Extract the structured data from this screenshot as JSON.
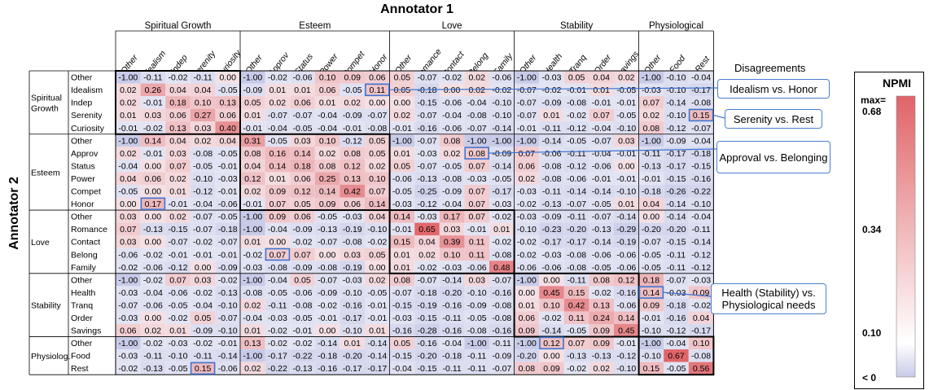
{
  "chart_data": {
    "type": "heatmap",
    "title": "Annotator 1",
    "xlabel": "Annotator 1",
    "ylabel": "Annotator 2",
    "groups": [
      {
        "name": "Spiritual Growth",
        "row_label": "Spiritual Growth",
        "labels": [
          "Other",
          "Idealism",
          "Indep",
          "Serenity",
          "Curiosity"
        ]
      },
      {
        "name": "Esteem",
        "row_label": "Esteem",
        "labels": [
          "Other",
          "Approv",
          "Status",
          "Power",
          "Compet",
          "Honor"
        ]
      },
      {
        "name": "Love",
        "row_label": "Love",
        "labels": [
          "Other",
          "Romance",
          "Contact",
          "Belong",
          "Family"
        ]
      },
      {
        "name": "Stability",
        "row_label": "Stability",
        "labels": [
          "Other",
          "Health",
          "Tranq",
          "Order",
          "Savings"
        ]
      },
      {
        "name": "Physiological",
        "row_label": "Physiolog.",
        "labels": [
          "Other",
          "Food",
          "Rest"
        ]
      }
    ],
    "matrix": [
      [
        -1.0,
        -0.11,
        -0.02,
        -0.11,
        0.0,
        -1.0,
        -0.02,
        -0.06,
        0.1,
        0.09,
        0.06,
        0.05,
        -0.07,
        -0.02,
        0.02,
        -0.06,
        -1.0,
        -0.03,
        0.05,
        0.04,
        0.02,
        -1.0,
        -0.1,
        -0.04
      ],
      [
        0.02,
        0.26,
        0.04,
        0.04,
        -0.05,
        -0.09,
        0.01,
        0.01,
        0.06,
        -0.05,
        0.11,
        0.05,
        -0.18,
        0.0,
        0.02,
        -0.02,
        -0.07,
        -0.02,
        -0.01,
        0.01,
        -0.05,
        -0.03,
        -0.1,
        -0.17
      ],
      [
        0.02,
        -0.01,
        0.18,
        0.1,
        0.13,
        0.05,
        0.02,
        0.06,
        0.01,
        0.02,
        0.0,
        0.0,
        -0.15,
        -0.06,
        -0.04,
        -0.1,
        -0.07,
        -0.09,
        -0.08,
        -0.01,
        -0.01,
        0.07,
        -0.14,
        -0.08
      ],
      [
        0.01,
        0.03,
        0.06,
        0.27,
        0.06,
        0.01,
        -0.07,
        -0.07,
        -0.04,
        -0.09,
        -0.07,
        0.02,
        -0.07,
        -0.04,
        -0.08,
        -0.1,
        -0.07,
        0.01,
        -0.02,
        0.07,
        -0.05,
        0.02,
        -0.1,
        0.15
      ],
      [
        -0.01,
        -0.02,
        0.13,
        0.03,
        0.4,
        -0.01,
        -0.04,
        -0.05,
        -0.04,
        -0.01,
        -0.08,
        -0.01,
        -0.16,
        -0.06,
        -0.07,
        -0.14,
        -0.01,
        -0.11,
        -0.12,
        -0.04,
        -0.1,
        0.08,
        -0.12,
        -0.07
      ],
      [
        -1.0,
        0.14,
        0.04,
        0.02,
        0.04,
        0.31,
        -0.05,
        0.03,
        0.1,
        -0.12,
        0.05,
        -1.0,
        -0.07,
        0.08,
        -1.0,
        -1.0,
        -1.0,
        -0.14,
        -0.05,
        -0.07,
        0.03,
        -1.0,
        -0.09,
        -0.04
      ],
      [
        0.02,
        -0.01,
        0.03,
        -0.08,
        -0.05,
        0.08,
        0.16,
        0.14,
        0.02,
        0.08,
        0.05,
        0.01,
        -0.03,
        0.02,
        0.08,
        -0.09,
        0.07,
        -0.06,
        -0.11,
        -0.04,
        -0.01,
        -0.11,
        -0.17,
        -0.18
      ],
      [
        -0.04,
        0.0,
        0.07,
        -0.05,
        -0.01,
        0.04,
        0.14,
        0.18,
        0.08,
        0.12,
        0.02,
        0.05,
        -0.07,
        -0.05,
        0.07,
        -0.14,
        0.06,
        -0.08,
        -0.12,
        -0.06,
        0.0,
        -0.13,
        -0.17,
        -0.15
      ],
      [
        0.04,
        0.06,
        0.02,
        -0.1,
        -0.03,
        0.12,
        0.01,
        0.06,
        0.25,
        0.13,
        0.1,
        -0.06,
        -0.13,
        -0.08,
        -0.03,
        -0.05,
        0.02,
        -0.08,
        -0.06,
        -0.01,
        -0.01,
        -0.01,
        -0.15,
        -0.16
      ],
      [
        -0.05,
        0.0,
        0.01,
        -0.12,
        -0.01,
        0.02,
        0.09,
        0.12,
        0.14,
        0.42,
        0.07,
        -0.05,
        -0.25,
        -0.09,
        0.07,
        -0.17,
        -0.03,
        -0.11,
        -0.14,
        -0.14,
        -0.1,
        -0.18,
        -0.26,
        -0.22
      ],
      [
        0.0,
        0.17,
        -0.01,
        -0.04,
        -0.06,
        -0.01,
        0.07,
        0.05,
        0.09,
        0.06,
        0.14,
        -0.03,
        -0.12,
        -0.04,
        0.07,
        -0.03,
        -0.02,
        -0.13,
        -0.07,
        -0.05,
        0.01,
        0.04,
        -0.14,
        -0.1
      ],
      [
        0.03,
        0.0,
        0.02,
        -0.07,
        -0.05,
        -1.0,
        0.09,
        0.06,
        -0.05,
        -0.03,
        0.04,
        0.14,
        -0.03,
        0.17,
        0.07,
        -0.02,
        -0.03,
        -0.09,
        -0.11,
        -0.07,
        -0.14,
        0.0,
        -0.14,
        -0.04
      ],
      [
        0.07,
        -0.13,
        -0.15,
        -0.07,
        -0.18,
        -1.0,
        -0.04,
        -0.09,
        -0.13,
        -0.19,
        -0.1,
        -0.01,
        0.65,
        0.03,
        -0.01,
        0.01,
        -0.1,
        -0.23,
        -0.2,
        -0.13,
        -0.29,
        -0.2,
        -0.2,
        -0.11
      ],
      [
        0.03,
        0.0,
        -0.07,
        -0.02,
        -0.07,
        0.01,
        0.0,
        -0.02,
        -0.07,
        -0.08,
        -0.02,
        0.15,
        0.04,
        0.39,
        0.11,
        -0.02,
        -0.02,
        -0.17,
        -0.17,
        -0.14,
        -0.19,
        -0.07,
        -0.15,
        -0.14
      ],
      [
        -0.06,
        -0.02,
        -0.01,
        -0.01,
        -0.01,
        -0.02,
        0.07,
        0.07,
        0.0,
        0.03,
        0.05,
        0.01,
        0.02,
        0.1,
        0.11,
        -0.08,
        -0.02,
        -0.03,
        -0.08,
        -0.06,
        -0.06,
        -0.05,
        -0.11,
        -0.12
      ],
      [
        -0.02,
        -0.06,
        -0.12,
        0.0,
        -0.09,
        -0.03,
        -0.08,
        -0.09,
        -0.08,
        -0.19,
        0.0,
        0.01,
        -0.02,
        -0.03,
        -0.06,
        0.48,
        -0.06,
        -0.06,
        -0.08,
        -0.05,
        -0.06,
        -0.05,
        -0.11,
        -0.12
      ],
      [
        -1.0,
        -0.02,
        0.07,
        0.03,
        -0.02,
        -1.0,
        -0.04,
        0.05,
        -0.07,
        -0.03,
        0.02,
        0.08,
        -0.07,
        -0.14,
        0.03,
        -0.07,
        -1.0,
        0.0,
        -0.11,
        0.08,
        0.12,
        0.18,
        -0.07,
        -0.03
      ],
      [
        -0.03,
        -0.04,
        -0.06,
        -0.02,
        -0.13,
        -0.08,
        -0.05,
        -0.06,
        -0.09,
        -0.1,
        -0.05,
        -0.07,
        -0.18,
        -0.2,
        -0.1,
        -0.16,
        0.0,
        0.45,
        0.15,
        -0.02,
        -0.16,
        0.14,
        -0.03,
        0.09
      ],
      [
        -0.07,
        -0.06,
        -0.05,
        -0.04,
        -0.1,
        0.02,
        -0.11,
        -0.08,
        -0.02,
        -0.16,
        -0.01,
        -0.15,
        -0.19,
        -0.16,
        -0.09,
        -0.08,
        0.01,
        0.1,
        0.42,
        0.13,
        -0.06,
        0.09,
        -0.18,
        -0.02
      ],
      [
        -0.03,
        0.0,
        -0.02,
        0.05,
        -0.07,
        -0.04,
        -0.03,
        -0.05,
        -0.01,
        -0.17,
        -0.01,
        -0.03,
        -0.15,
        -0.11,
        -0.05,
        -0.08,
        0.06,
        -0.02,
        0.11,
        0.24,
        0.14,
        -0.01,
        -0.16,
        0.04
      ],
      [
        0.06,
        0.02,
        0.01,
        -0.09,
        -0.1,
        0.01,
        -0.02,
        -0.01,
        0.0,
        -0.1,
        0.01,
        -0.16,
        -0.28,
        -0.16,
        -0.08,
        -0.16,
        0.09,
        -0.14,
        -0.05,
        0.09,
        0.45,
        -0.1,
        -0.12,
        -0.17
      ],
      [
        -1.0,
        -0.02,
        -0.03,
        -0.02,
        -0.01,
        0.13,
        -0.02,
        -0.02,
        -0.14,
        0.01,
        -0.14,
        0.05,
        -0.16,
        -0.04,
        -1.0,
        -0.11,
        -1.0,
        0.12,
        0.07,
        0.09,
        -0.01,
        -1.0,
        -0.04,
        0.1
      ],
      [
        -0.03,
        -0.11,
        -0.1,
        -0.11,
        -0.14,
        -1.0,
        -0.17,
        -0.22,
        -0.18,
        -0.2,
        -0.14,
        -0.15,
        -0.2,
        -0.18,
        -0.11,
        -0.09,
        -0.2,
        0.0,
        -0.13,
        -0.13,
        -0.12,
        -0.1,
        0.67,
        -0.08
      ],
      [
        -0.02,
        -0.13,
        -0.05,
        0.15,
        -0.06,
        0.02,
        -0.22,
        -0.13,
        -0.16,
        -0.17,
        -0.17,
        -0.04,
        -0.15,
        -0.11,
        -0.11,
        -0.07,
        0.08,
        0.09,
        -0.02,
        0.02,
        -0.1,
        0.15,
        -0.05,
        0.56
      ]
    ],
    "highlighted_cells": [
      {
        "row": "Idealism",
        "col": "Honor",
        "callout": "Idealism vs. Honor"
      },
      {
        "row": "Serenity",
        "col": "Rest",
        "callout": "Serenity vs. Rest"
      },
      {
        "row": "Approv",
        "col": "Belong",
        "callout": "Approval vs. Belonging"
      },
      {
        "row": "Health",
        "col": "Other (Physiological)",
        "callout": "Health (Stability) vs. Physiological needs"
      },
      {
        "row": "Honor",
        "col": "Idealism"
      },
      {
        "row": "Belong",
        "col": "Approv"
      },
      {
        "row": "Rest",
        "col": "Serenity"
      },
      {
        "row": "Other (Physiological)",
        "col": "Health"
      }
    ],
    "colorbar": {
      "title": "NPMI",
      "max_label": "max=",
      "ticks": [
        "0.68",
        "0.34",
        "0.10",
        "< 0"
      ],
      "colors": {
        "low": "#c8cbe8",
        "zero": "#ffffff",
        "high": "#e06468"
      }
    },
    "disagreements_title": "Disagreements",
    "callouts": [
      "Idealism vs. Honor",
      "Serenity vs. Rest",
      "Approval vs. Belonging",
      "Health (Stability) vs. Physiological needs"
    ]
  }
}
